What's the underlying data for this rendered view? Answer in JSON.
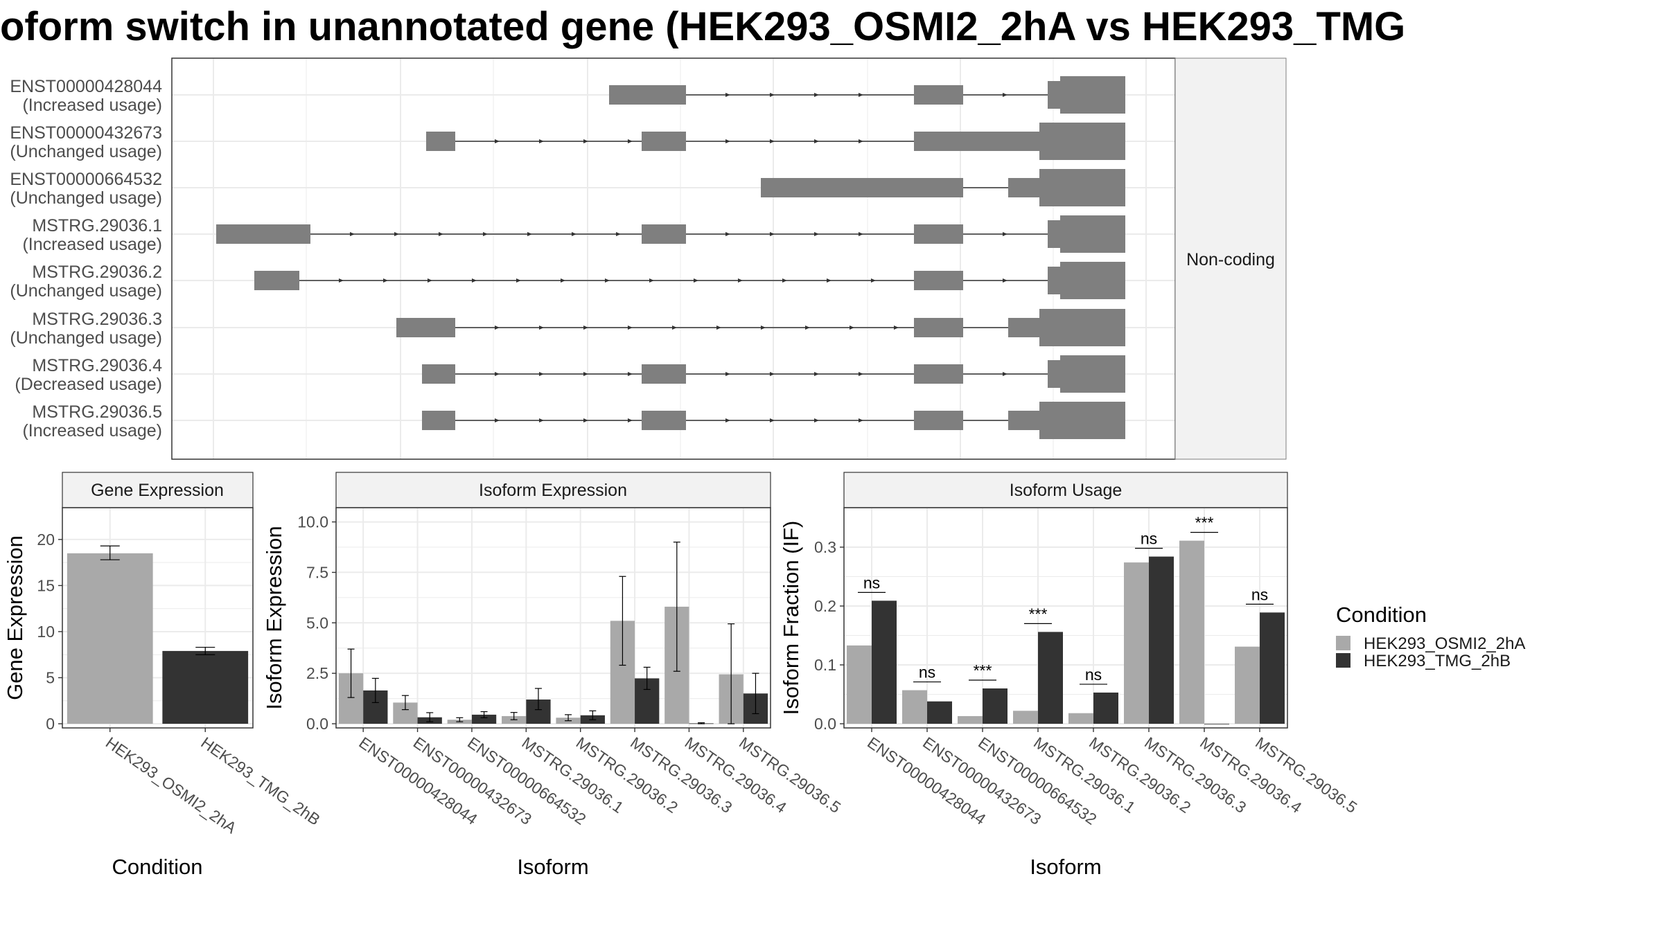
{
  "title": "oform switch in unannotated gene (HEK293_OSMI2_2hA vs HEK293_TMG",
  "colors": {
    "cond1": "#a9a9a9",
    "cond2": "#333333",
    "exon": "#7f7f7f",
    "grid": "#ebebeb",
    "panel_border": "#333333",
    "strip_fill": "#f2f2f2"
  },
  "transcript_panel": {
    "strip_label": "Non-coding",
    "transcripts": [
      {
        "id": "ENST00000428044",
        "status": "(Increased usage)"
      },
      {
        "id": "ENST00000432673",
        "status": "(Unchanged usage)"
      },
      {
        "id": "ENST00000664532",
        "status": "(Unchanged usage)"
      },
      {
        "id": "MSTRG.29036.1",
        "status": "(Increased usage)"
      },
      {
        "id": "MSTRG.29036.2",
        "status": "(Unchanged usage)"
      },
      {
        "id": "MSTRG.29036.3",
        "status": "(Unchanged usage)"
      },
      {
        "id": "MSTRG.29036.4",
        "status": "(Decreased usage)"
      },
      {
        "id": "MSTRG.29036.5",
        "status": "(Increased usage)"
      }
    ]
  },
  "legend": {
    "title": "Condition",
    "labels": [
      "HEK293_OSMI2_2hA",
      "HEK293_TMG_2hB"
    ]
  },
  "chart_data": [
    {
      "type": "bar",
      "title": "Gene Expression",
      "xlabel": "Condition",
      "ylabel": "Gene Expression",
      "ylim": [
        0,
        23
      ],
      "yticks": [
        0,
        5,
        10,
        15,
        20
      ],
      "categories": [
        "HEK293_OSMI2_2hA",
        "HEK293_TMG_2hB"
      ],
      "values": [
        18.5,
        7.9
      ],
      "errors": [
        [
          17.8,
          19.3
        ],
        [
          7.5,
          8.3
        ]
      ]
    },
    {
      "type": "bar",
      "title": "Isoform Expression",
      "xlabel": "Isoform",
      "ylabel": "Isoform Expression",
      "ylim": [
        0,
        10.5
      ],
      "yticks": [
        "0.0",
        "2.5",
        "5.0",
        "7.5",
        "10.0"
      ],
      "categories": [
        "ENST00000428044",
        "ENST00000432673",
        "ENST00000664532",
        "MSTRG.29036.1",
        "MSTRG.29036.2",
        "MSTRG.29036.3",
        "MSTRG.29036.4",
        "MSTRG.29036.5"
      ],
      "series": [
        {
          "name": "HEK293_OSMI2_2hA",
          "values": [
            2.5,
            1.05,
            0.2,
            0.38,
            0.3,
            5.1,
            5.8,
            2.45
          ],
          "errors": [
            [
              1.3,
              3.7
            ],
            [
              0.7,
              1.4
            ],
            [
              0.1,
              0.3
            ],
            [
              0.2,
              0.56
            ],
            [
              0.15,
              0.45
            ],
            [
              2.9,
              7.3
            ],
            [
              2.6,
              9.0
            ],
            [
              0.0,
              4.95
            ]
          ]
        },
        {
          "name": "HEK293_TMG_2hB",
          "values": [
            1.65,
            0.32,
            0.45,
            1.2,
            0.42,
            2.25,
            0.02,
            1.5
          ],
          "errors": [
            [
              1.05,
              2.25
            ],
            [
              0.1,
              0.55
            ],
            [
              0.3,
              0.6
            ],
            [
              0.7,
              1.75
            ],
            [
              0.2,
              0.64
            ],
            [
              1.7,
              2.8
            ],
            [
              0.0,
              0.05
            ],
            [
              0.5,
              2.5
            ]
          ]
        }
      ]
    },
    {
      "type": "bar",
      "title": "Isoform Usage",
      "xlabel": "Isoform",
      "ylabel": "Isoform Fraction (IF)",
      "ylim": [
        0,
        0.36
      ],
      "yticks": [
        "0.0",
        "0.1",
        "0.2",
        "0.3"
      ],
      "categories": [
        "ENST00000428044",
        "ENST00000432673",
        "ENST00000664532",
        "MSTRG.29036.1",
        "MSTRG.29036.2",
        "MSTRG.29036.3",
        "MSTRG.29036.4",
        "MSTRG.29036.5"
      ],
      "series": [
        {
          "name": "HEK293_OSMI2_2hA",
          "values": [
            0.133,
            0.057,
            0.013,
            0.022,
            0.018,
            0.274,
            0.311,
            0.131
          ]
        },
        {
          "name": "HEK293_TMG_2hB",
          "values": [
            0.209,
            0.038,
            0.06,
            0.156,
            0.053,
            0.284,
            0.0,
            0.189
          ]
        }
      ],
      "significance": [
        "ns",
        "ns",
        "***",
        "***",
        "ns",
        "ns",
        "***",
        "ns"
      ]
    }
  ]
}
